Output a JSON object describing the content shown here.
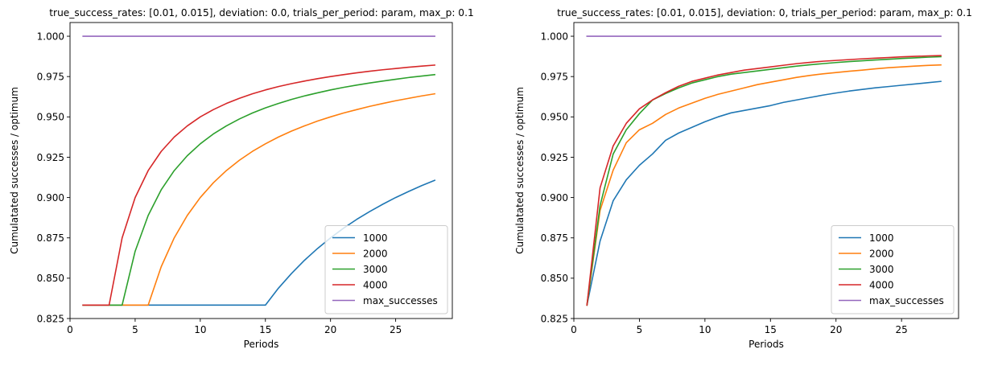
{
  "chart_data": [
    {
      "type": "line",
      "title": "true_success_rates: [0.01, 0.015], deviation: 0.0, trials_per_period: param, max_p: 0.1",
      "xlabel": "Periods",
      "ylabel": "Cumulatated successes / optimum",
      "xlim": [
        0,
        29.35
      ],
      "ylim": [
        0.825,
        1.0085
      ],
      "xticks": [
        0,
        5,
        10,
        15,
        20,
        25
      ],
      "yticks": [
        0.825,
        0.85,
        0.875,
        0.9,
        0.925,
        0.95,
        0.975,
        1.0
      ],
      "ytick_labels": [
        "0.825",
        "0.850",
        "0.875",
        "0.900",
        "0.925",
        "0.950",
        "0.975",
        "1.000"
      ],
      "legend_position": "lower right",
      "grid": false,
      "x": [
        1,
        2,
        3,
        4,
        5,
        6,
        7,
        8,
        9,
        10,
        11,
        12,
        13,
        14,
        15,
        16,
        17,
        18,
        19,
        20,
        21,
        22,
        23,
        24,
        25,
        26,
        27,
        28
      ],
      "series": [
        {
          "name": "1000",
          "color": "#1f77b4",
          "values": [
            0.8333,
            0.8333,
            0.8333,
            0.8333,
            0.8333,
            0.8333,
            0.8333,
            0.8333,
            0.8333,
            0.8333,
            0.8333,
            0.8333,
            0.8333,
            0.8333,
            0.8333,
            0.8438,
            0.8529,
            0.8611,
            0.8684,
            0.875,
            0.881,
            0.8864,
            0.8913,
            0.8958,
            0.9,
            0.9038,
            0.9074,
            0.9107
          ]
        },
        {
          "name": "2000",
          "color": "#ff7f0e",
          "values": [
            0.8333,
            0.8333,
            0.8333,
            0.8333,
            0.8333,
            0.8333,
            0.8571,
            0.875,
            0.8889,
            0.9,
            0.9091,
            0.9167,
            0.9231,
            0.9286,
            0.9333,
            0.9375,
            0.9412,
            0.9444,
            0.9474,
            0.95,
            0.9524,
            0.9545,
            0.9565,
            0.9583,
            0.96,
            0.9615,
            0.963,
            0.9643
          ]
        },
        {
          "name": "3000",
          "color": "#2ca02c",
          "values": [
            0.8333,
            0.8333,
            0.8333,
            0.8333,
            0.8667,
            0.8889,
            0.9048,
            0.9167,
            0.9259,
            0.9333,
            0.9394,
            0.9444,
            0.9487,
            0.9524,
            0.9556,
            0.9583,
            0.9608,
            0.963,
            0.9649,
            0.9667,
            0.9683,
            0.9697,
            0.971,
            0.9722,
            0.9733,
            0.9744,
            0.9753,
            0.9762
          ]
        },
        {
          "name": "4000",
          "color": "#d62728",
          "values": [
            0.8333,
            0.8333,
            0.8333,
            0.875,
            0.9,
            0.9167,
            0.9286,
            0.9375,
            0.9444,
            0.95,
            0.9545,
            0.9583,
            0.9615,
            0.9643,
            0.9667,
            0.9688,
            0.9706,
            0.9722,
            0.9737,
            0.975,
            0.9762,
            0.9773,
            0.9783,
            0.9792,
            0.98,
            0.9808,
            0.9815,
            0.9821
          ]
        },
        {
          "name": "max_successes",
          "color": "#9467bd",
          "values": [
            1,
            1,
            1,
            1,
            1,
            1,
            1,
            1,
            1,
            1,
            1,
            1,
            1,
            1,
            1,
            1,
            1,
            1,
            1,
            1,
            1,
            1,
            1,
            1,
            1,
            1,
            1,
            1
          ]
        }
      ]
    },
    {
      "type": "line",
      "title": "true_success_rates: [0.01, 0.015], deviation: 0, trials_per_period: param, max_p: 0.1",
      "xlabel": "Periods",
      "ylabel": "Cumulatated successes / optimum",
      "xlim": [
        0,
        29.35
      ],
      "ylim": [
        0.825,
        1.0085
      ],
      "xticks": [
        0,
        5,
        10,
        15,
        20,
        25
      ],
      "yticks": [
        0.825,
        0.85,
        0.875,
        0.9,
        0.925,
        0.95,
        0.975,
        1.0
      ],
      "ytick_labels": [
        "0.825",
        "0.850",
        "0.875",
        "0.900",
        "0.925",
        "0.950",
        "0.975",
        "1.000"
      ],
      "legend_position": "lower right",
      "grid": false,
      "x": [
        1,
        2,
        3,
        4,
        5,
        6,
        7,
        8,
        9,
        10,
        11,
        12,
        13,
        14,
        15,
        16,
        17,
        18,
        19,
        20,
        21,
        22,
        23,
        24,
        25,
        26,
        27,
        28
      ],
      "series": [
        {
          "name": "1000",
          "color": "#1f77b4",
          "values": [
            0.8333,
            0.873,
            0.898,
            0.911,
            0.92,
            0.927,
            0.9355,
            0.94,
            0.9435,
            0.947,
            0.95,
            0.9525,
            0.954,
            0.9555,
            0.957,
            0.959,
            0.9605,
            0.962,
            0.9635,
            0.9648,
            0.966,
            0.967,
            0.968,
            0.9688,
            0.9696,
            0.9704,
            0.9712,
            0.972
          ]
        },
        {
          "name": "2000",
          "color": "#ff7f0e",
          "values": [
            0.8333,
            0.892,
            0.917,
            0.934,
            0.942,
            0.946,
            0.9515,
            0.9555,
            0.9585,
            0.9615,
            0.964,
            0.966,
            0.968,
            0.97,
            0.9715,
            0.973,
            0.9745,
            0.9757,
            0.9767,
            0.9775,
            0.9783,
            0.979,
            0.9798,
            0.9805,
            0.981,
            0.9815,
            0.9819,
            0.9822
          ]
        },
        {
          "name": "3000",
          "color": "#2ca02c",
          "values": [
            0.8333,
            0.895,
            0.927,
            0.942,
            0.952,
            0.9605,
            0.9645,
            0.968,
            0.971,
            0.973,
            0.975,
            0.9765,
            0.9775,
            0.9785,
            0.9795,
            0.9805,
            0.9815,
            0.9823,
            0.983,
            0.9837,
            0.9843,
            0.9848,
            0.9853,
            0.9857,
            0.9862,
            0.9866,
            0.987,
            0.9873
          ]
        },
        {
          "name": "4000",
          "color": "#d62728",
          "values": [
            0.8333,
            0.906,
            0.932,
            0.946,
            0.955,
            0.9605,
            0.965,
            0.969,
            0.972,
            0.974,
            0.976,
            0.9775,
            0.979,
            0.98,
            0.981,
            0.982,
            0.983,
            0.9838,
            0.9845,
            0.985,
            0.9855,
            0.986,
            0.9864,
            0.9868,
            0.9872,
            0.9875,
            0.9878,
            0.988
          ]
        },
        {
          "name": "max_successes",
          "color": "#9467bd",
          "values": [
            1,
            1,
            1,
            1,
            1,
            1,
            1,
            1,
            1,
            1,
            1,
            1,
            1,
            1,
            1,
            1,
            1,
            1,
            1,
            1,
            1,
            1,
            1,
            1,
            1,
            1,
            1,
            1
          ]
        }
      ]
    }
  ]
}
